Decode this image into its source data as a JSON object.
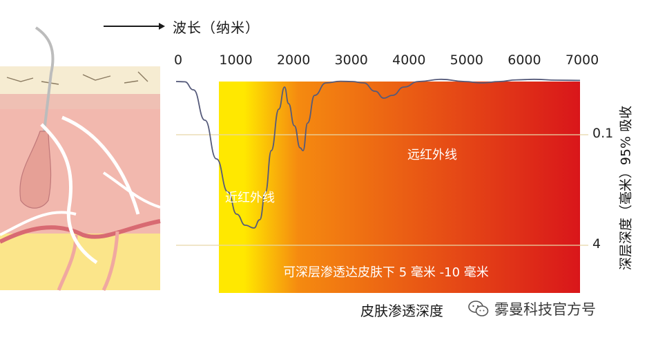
{
  "header": {
    "axis_title": "波长（纳米）"
  },
  "labels": {
    "y_axis_title": "深层深度（毫米）95% 吸收",
    "bottom_label": "皮肤渗透深度",
    "far_infrared": "远红外线",
    "near_infrared": "近红外线",
    "penetration_note": "可深层渗透达皮肤下 5 毫米 -10 毫米"
  },
  "watermark": {
    "text": "雾曼科技官方号",
    "icon": "wechat-icon"
  },
  "colors": {
    "curve": "#555a7a",
    "gradient_yellow": "#ffe800",
    "gradient_orange": "#f58a10",
    "gradient_red": "#d9161a",
    "gridline": "#e8d8a8"
  },
  "chart_data": {
    "type": "line",
    "title": "",
    "xlabel": "波长（纳米）",
    "ylabel": "深层深度（毫米）95% 吸收",
    "x_ticks": [
      0,
      1000,
      2000,
      3000,
      4000,
      5000,
      6000,
      7000
    ],
    "y_ticks": [
      "0.1",
      "4"
    ],
    "xlim": [
      0,
      7000
    ],
    "grid": true,
    "series": [
      {
        "values": [
          [
            0,
            0.0
          ],
          [
            150,
            0.01
          ],
          [
            300,
            0.3
          ],
          [
            500,
            1.4
          ],
          [
            700,
            2.8
          ],
          [
            900,
            4.0
          ],
          [
            1050,
            4.8
          ],
          [
            1200,
            5.2
          ],
          [
            1350,
            5.3
          ],
          [
            1450,
            5.0
          ],
          [
            1550,
            4.0
          ],
          [
            1650,
            2.5
          ],
          [
            1780,
            1.0
          ],
          [
            1880,
            0.2
          ],
          [
            1950,
            0.8
          ],
          [
            2050,
            1.6
          ],
          [
            2150,
            2.4
          ],
          [
            2200,
            2.5
          ],
          [
            2280,
            1.5
          ],
          [
            2400,
            0.5
          ],
          [
            2600,
            0.05
          ],
          [
            2850,
            -0.01
          ],
          [
            3050,
            0.0
          ],
          [
            3250,
            0.05
          ],
          [
            3450,
            0.35
          ],
          [
            3600,
            0.6
          ],
          [
            3750,
            0.5
          ],
          [
            3950,
            0.2
          ],
          [
            4200,
            0.0
          ],
          [
            4600,
            -0.08
          ],
          [
            5000,
            0.0
          ],
          [
            5300,
            0.05
          ],
          [
            5600,
            0.0
          ],
          [
            5900,
            -0.06
          ],
          [
            6200,
            -0.08
          ],
          [
            6600,
            -0.05
          ],
          [
            7000,
            -0.04
          ]
        ]
      }
    ]
  }
}
